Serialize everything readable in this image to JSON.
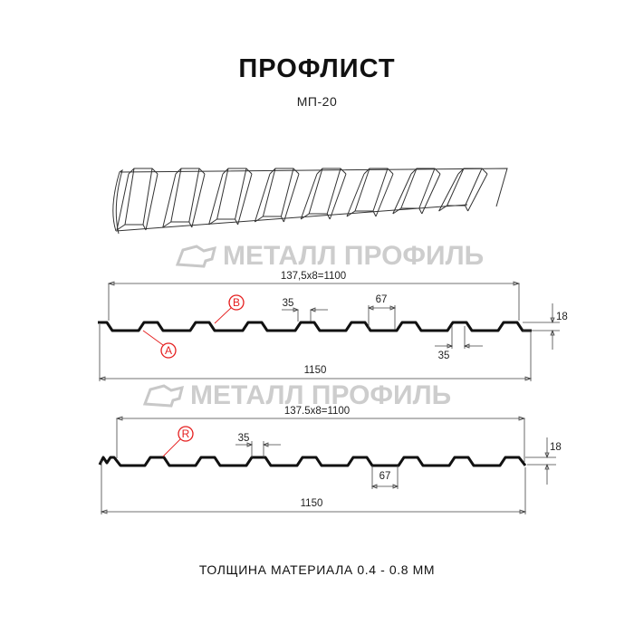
{
  "header": {
    "title": "ПРОФЛИСТ",
    "subtitle": "МП-20"
  },
  "watermark": {
    "text": "МЕТАЛЛ ПРОФИЛЬ",
    "color": "#bdbdbd"
  },
  "profile_1": {
    "pitch_label": "137,5х8=1100",
    "width_label": "1150",
    "top_width_label": "35",
    "bottom_width_label": "67",
    "lower_35_label": "35",
    "height_label": "18",
    "marker_a": "A",
    "marker_b": "B"
  },
  "profile_2": {
    "pitch_label": "137.5х8=1100",
    "width_label": "1150",
    "top_width_label": "35",
    "bottom_width_label": "67",
    "height_label": "18",
    "marker_r": "R"
  },
  "footer": {
    "thickness": "ТОЛЩИНА МАТЕРИАЛА 0.4 - 0.8 ММ"
  },
  "colors": {
    "marker": "#e51e1e",
    "profile": "#111111"
  }
}
